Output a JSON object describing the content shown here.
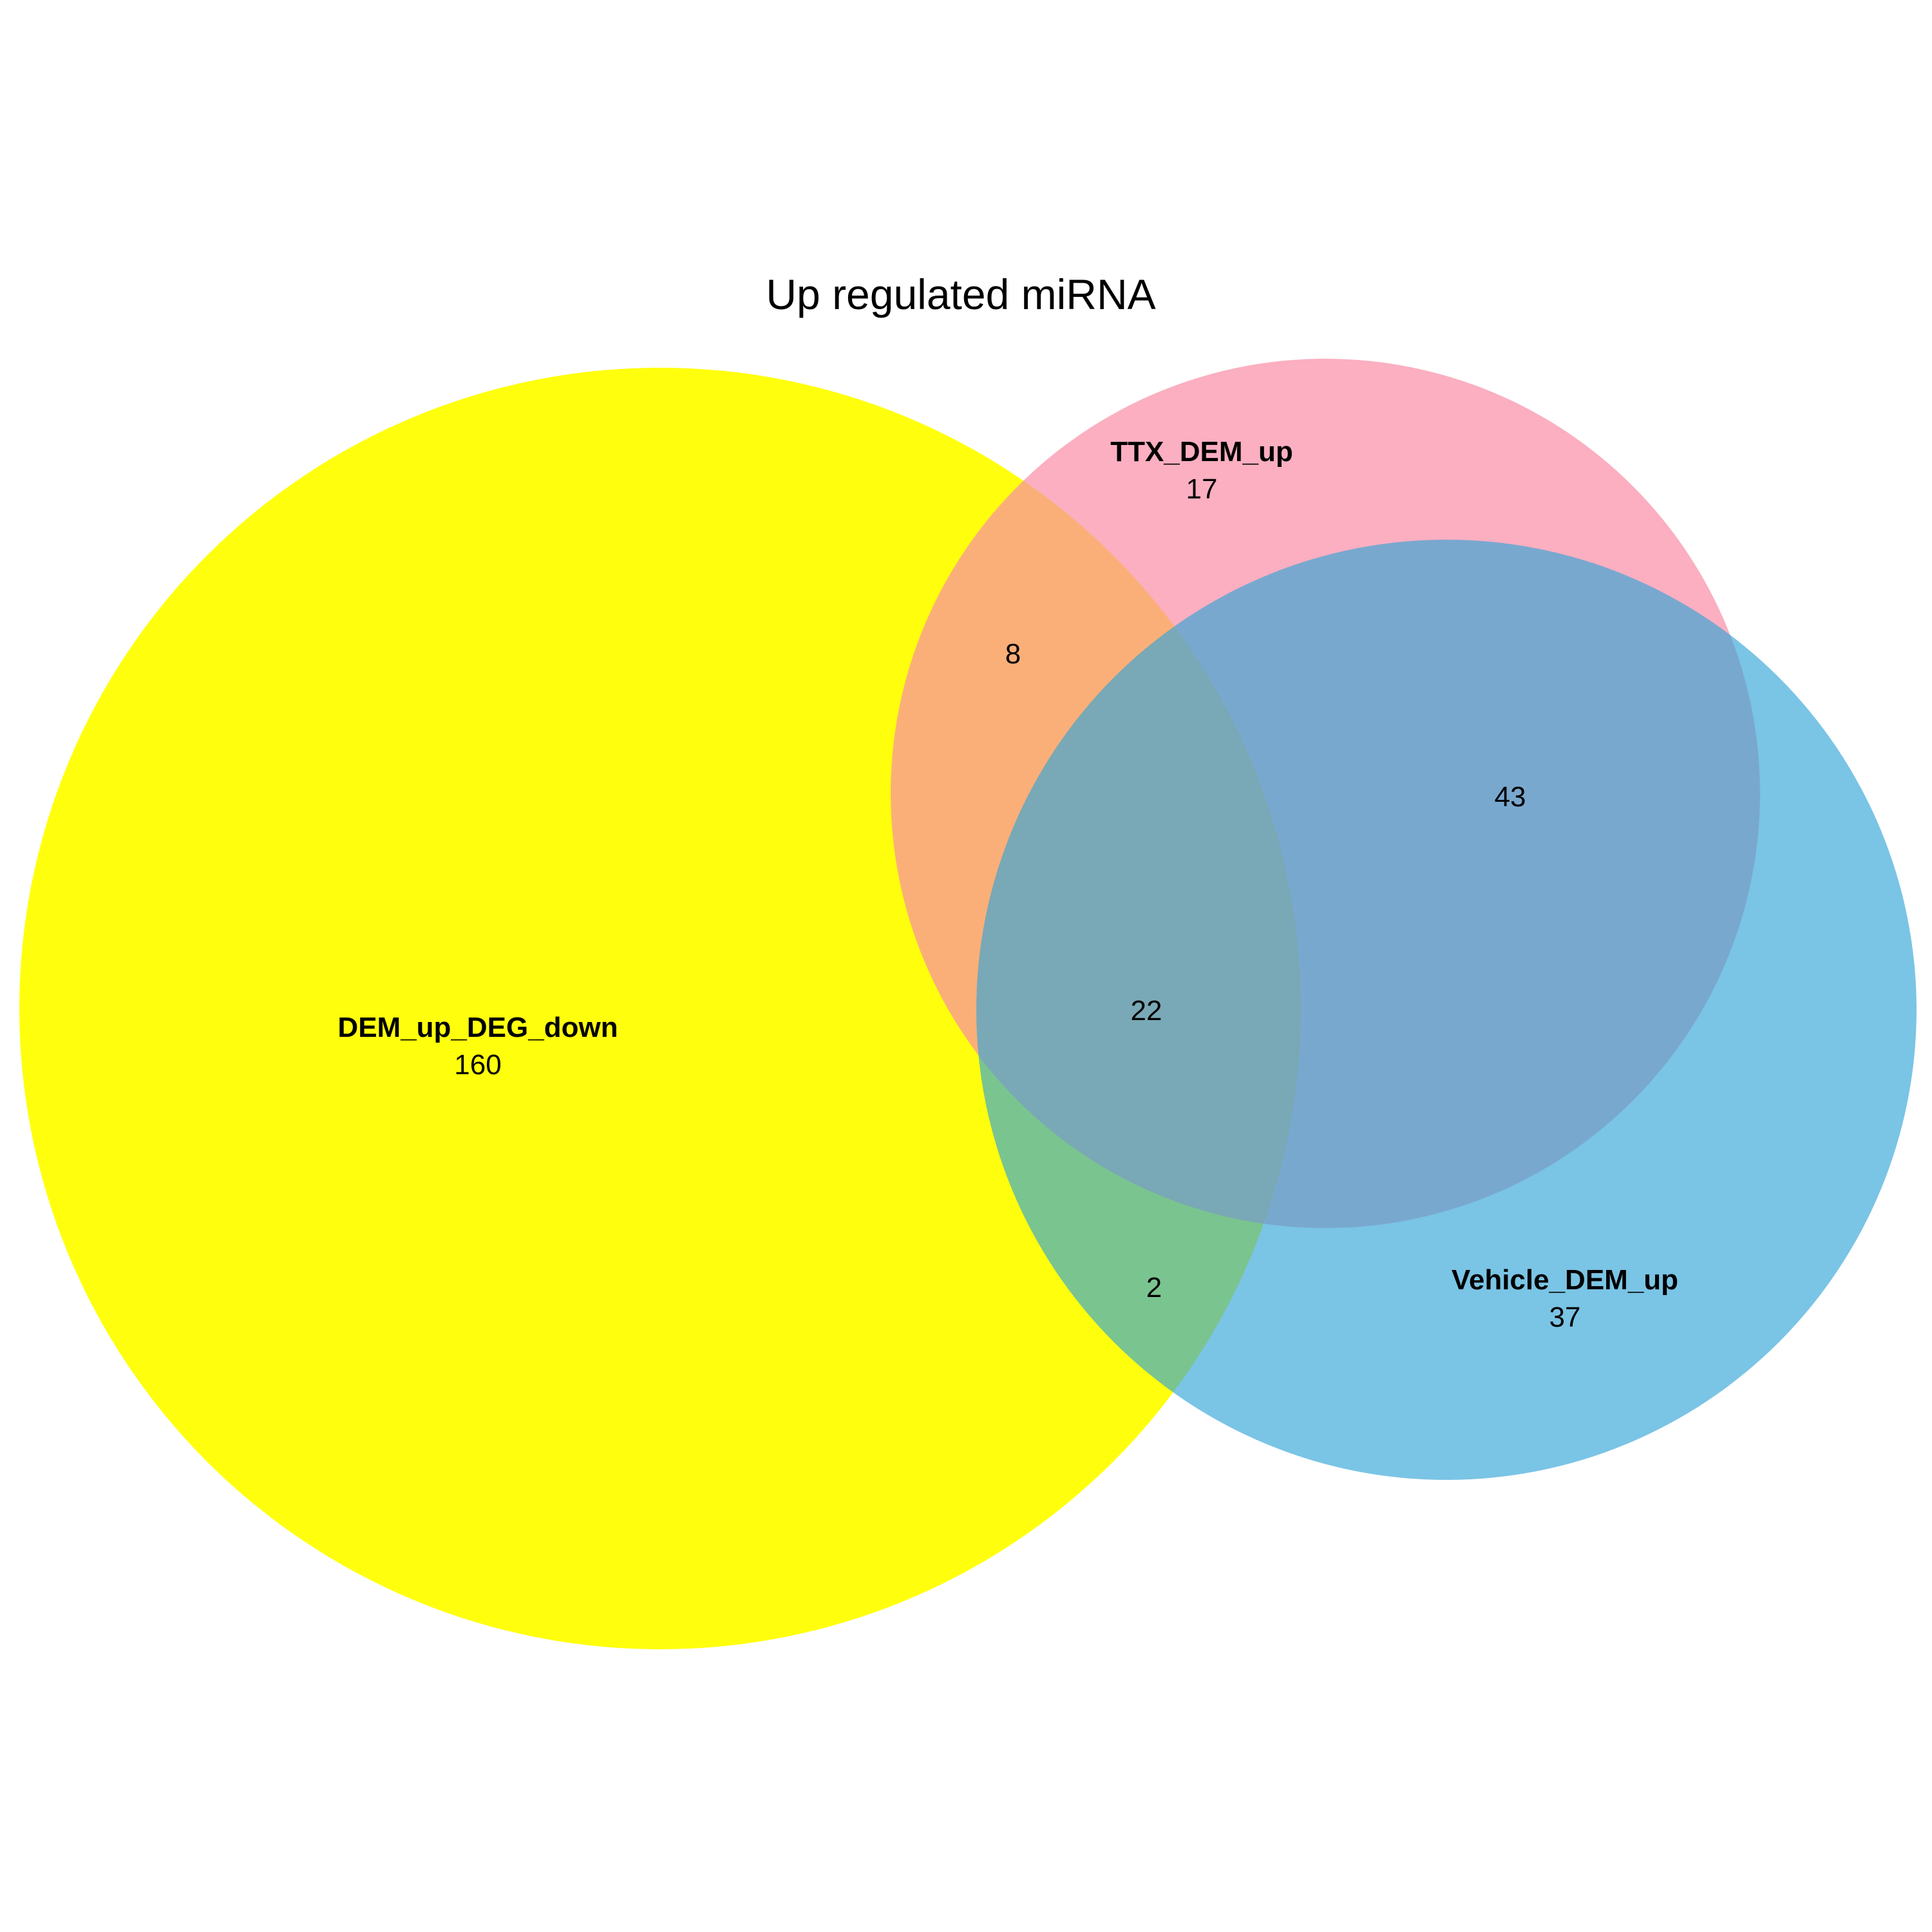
{
  "title": "Up regulated miRNA",
  "sets": [
    {
      "name": "DEM_up_DEG_down",
      "only_count": "160",
      "color": "#ffff00"
    },
    {
      "name": "TTX_DEM_up",
      "only_count": "17",
      "color": "#f98da7"
    },
    {
      "name": "Vehicle_DEM_up",
      "only_count": "37",
      "color": "#32a5d7"
    }
  ],
  "intersections": {
    "dem_ttx": "8",
    "dem_vehicle": "2",
    "ttx_vehicle": "43",
    "all_three": "22"
  }
}
